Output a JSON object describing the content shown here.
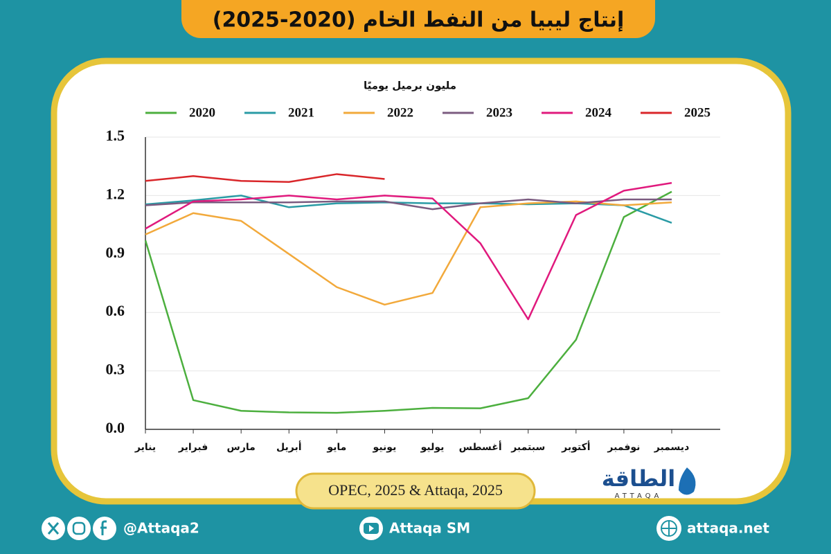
{
  "chart_data": {
    "type": "line",
    "title": "إنتاج ليبيا من النفط الخام (2020-2025)",
    "y_label": "مليون برميل يوميًا",
    "source": "OPEC, 2025 & Attaqa, 2025",
    "categories": [
      "يناير",
      "فبراير",
      "مارس",
      "أبريل",
      "مايو",
      "يونيو",
      "يوليو",
      "أغسطس",
      "سبتمبر",
      "أكتوبر",
      "نوفمبر",
      "ديسمبر"
    ],
    "series": [
      {
        "name": "2020",
        "color": "#4caf3e",
        "values": [
          0.97,
          0.15,
          0.095,
          0.087,
          0.085,
          0.095,
          0.11,
          0.108,
          0.16,
          0.46,
          1.09,
          1.22
        ]
      },
      {
        "name": "2021",
        "color": "#2a9ba5",
        "values": [
          1.155,
          1.175,
          1.2,
          1.14,
          1.16,
          1.165,
          1.16,
          1.16,
          1.155,
          1.16,
          1.15,
          1.06
        ]
      },
      {
        "name": "2022",
        "color": "#f2a93b",
        "values": [
          1.0,
          1.11,
          1.07,
          0.9,
          0.73,
          0.64,
          0.7,
          1.14,
          1.16,
          1.17,
          1.15,
          1.165
        ]
      },
      {
        "name": "2023",
        "color": "#7b5b80",
        "values": [
          1.15,
          1.165,
          1.165,
          1.165,
          1.17,
          1.17,
          1.13,
          1.16,
          1.18,
          1.16,
          1.18,
          1.18
        ]
      },
      {
        "name": "2024",
        "color": "#e0197d",
        "values": [
          1.03,
          1.17,
          1.18,
          1.2,
          1.18,
          1.2,
          1.185,
          0.955,
          0.565,
          1.1,
          1.225,
          1.265
        ]
      },
      {
        "name": "2025",
        "color": "#d9262a",
        "values": [
          1.275,
          1.3,
          1.275,
          1.27,
          1.31,
          1.285,
          null,
          null,
          null,
          null,
          null,
          null
        ]
      }
    ],
    "ylim": [
      0,
      1.5
    ],
    "yticks": [
      {
        "value": 0,
        "label": "0.0"
      },
      0.3,
      0.6,
      0.9,
      1.2,
      1.5
    ],
    "grid": true
  },
  "logo": {
    "name": "الطاقة",
    "latin": "ATTAQA"
  },
  "footer": {
    "social": "@Attaqa2",
    "youtube": "Attaqa SM",
    "website": "attaqa.net"
  }
}
